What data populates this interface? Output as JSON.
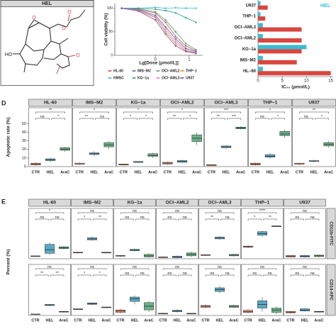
{
  "structure": {
    "title": "HEL",
    "labels": [
      "HO",
      "O",
      "O",
      "O",
      "O"
    ]
  },
  "chart_data": [
    {
      "type": "line",
      "xlabel": "Lg[Dose (μmol/L)]",
      "ylabel": "Cell viability (%)",
      "x": [
        -1,
        -0.5,
        0,
        0.3,
        0.6,
        0.9,
        1.2
      ],
      "xlim": [
        -1.2,
        1.4
      ],
      "xticks": [
        0,
        1
      ],
      "ylim": [
        0,
        110
      ],
      "yticks": [
        0,
        50,
        100
      ],
      "series": [
        {
          "name": "HL-60",
          "color": "#d9534f",
          "values": [
            100,
            98,
            90,
            70,
            40,
            20,
            10
          ]
        },
        {
          "name": "IMS−M2",
          "color": "#3b6fb6",
          "values": [
            100,
            97,
            85,
            60,
            35,
            15,
            8
          ]
        },
        {
          "name": "OCI−AML2",
          "color": "#5aa469",
          "values": [
            100,
            99,
            92,
            75,
            50,
            25,
            12
          ]
        },
        {
          "name": "THP−1",
          "color": "#e08a2c",
          "values": [
            100,
            95,
            80,
            50,
            25,
            10,
            5
          ]
        },
        {
          "name": "HMSC",
          "color": "#3bbcd6",
          "values": [
            100,
            100,
            102,
            100,
            101,
            100,
            100
          ]
        },
        {
          "name": "KG−1a",
          "color": "#2a9d8f",
          "values": [
            100,
            100,
            98,
            95,
            90,
            80,
            70
          ]
        },
        {
          "name": "OCI−AML3",
          "color": "#e377c2",
          "values": [
            100,
            96,
            82,
            55,
            30,
            12,
            6
          ]
        },
        {
          "name": "U937",
          "color": "#7b4ea3",
          "values": [
            100,
            94,
            75,
            45,
            20,
            8,
            4
          ]
        }
      ]
    },
    {
      "type": "hbar",
      "xlabel": "IC₅₀ (μmol/L)",
      "categories": [
        "U937",
        "THP−1",
        "OCI−AML3",
        "OCI−AML2",
        "KG−1a",
        "IMS−M2",
        "HL−60"
      ],
      "xlim": [
        0,
        15.5
      ],
      "xticks": [
        0,
        5,
        10,
        15
      ],
      "series": [
        {
          "name": "HEL",
          "color": "#3bbcd6",
          "values": [
            0.5,
            0.5,
            1,
            1,
            10,
            1,
            1
          ]
        },
        {
          "color": "#d9463e",
          "values": [
            2,
            1.5,
            9,
            9,
            9,
            8,
            15
          ]
        }
      ]
    },
    {
      "type": "box",
      "label": "D",
      "ylabel": "Apoptotic rate (%)",
      "categories": [
        "CTR",
        "HEL",
        "AraC"
      ],
      "colors": [
        "#e8876a",
        "#5aa9c6",
        "#6ab187"
      ],
      "ylim": [
        0,
        52
      ],
      "yticks": [
        0,
        10,
        20,
        30,
        40,
        50
      ],
      "titles": [
        "HL-60",
        "IMS−M2",
        "KG−1a",
        "OCI−AML2",
        "OCI−AML3",
        "THP−1",
        "U937"
      ],
      "rows": [
        {
          "boxes": [
            [
              [
                1,
                2,
                3,
                4,
                5
              ],
              [
                5,
                7,
                8,
                9,
                11
              ],
              [
                17,
                19,
                20,
                22,
                23
              ]
            ],
            [
              [
                2,
                3,
                3,
                4,
                5
              ],
              [
                12,
                14,
                15,
                16,
                18
              ],
              [
                20,
                23,
                25,
                28,
                30
              ]
            ],
            [
              [
                1,
                2,
                2,
                3,
                3
              ],
              [
                4,
                5,
                5,
                6,
                6
              ],
              [
                10,
                12,
                13,
                15,
                16
              ]
            ],
            [
              [
                2,
                3,
                4,
                5,
                6
              ],
              [
                4,
                5,
                6,
                7,
                8
              ],
              [
                25,
                29,
                33,
                37,
                40
              ]
            ],
            [
              [
                1,
                1,
                2,
                2,
                2
              ],
              [
                21,
                22,
                23,
                24,
                25
              ],
              [
                43,
                44,
                45,
                46,
                47
              ]
            ],
            [
              [
                1,
                2,
                3,
                4,
                5
              ],
              [
                9,
                11,
                12,
                14,
                16
              ],
              [
                33,
                36,
                38,
                41,
                43
              ]
            ],
            [
              [
                2,
                3,
                3,
                4,
                4
              ],
              [
                5,
                6,
                6,
                7,
                8
              ],
              [
                22,
                24,
                26,
                28,
                30
              ]
            ]
          ],
          "annotations": [
            [
              "**",
              "ns",
              "*"
            ],
            [
              "*",
              "**",
              "ns"
            ],
            [
              "*",
              "*",
              "*"
            ],
            [
              "*",
              "**",
              "*"
            ],
            [
              "***",
              "**",
              "***"
            ],
            [
              "*",
              "ns",
              "*"
            ],
            [
              "**",
              "ns",
              "*"
            ]
          ]
        }
      ]
    },
    {
      "type": "box",
      "label": "E",
      "ylabel": "Percent (%)",
      "categories": [
        "CTR",
        "HEL",
        "AraC"
      ],
      "colors": [
        "#e8876a",
        "#5aa9c6",
        "#6ab187"
      ],
      "ylim": [
        0,
        100
      ],
      "titles": [
        "HL-60",
        "IMS−M2",
        "KG−1a",
        "OCI−AML2",
        "OCI−AML3",
        "THP−1",
        "U937"
      ],
      "rows": [
        {
          "name": "CD11b-FITC",
          "boxes": [
            [
              [
                5,
                6,
                7,
                8,
                9
              ],
              [
                10,
                15,
                25,
                40,
                45
              ],
              [
                25,
                28,
                30,
                33,
                36
              ]
            ],
            [
              [
                15,
                16,
                17,
                18,
                19
              ],
              [
                50,
                52,
                55,
                58,
                62
              ],
              [
                15,
                16,
                17,
                18,
                19
              ]
            ],
            [
              [
                5,
                7,
                8,
                9,
                10
              ],
              [
                20,
                22,
                24,
                26,
                28
              ],
              [
                3,
                5,
                8,
                12,
                15
              ]
            ],
            [
              [
                2,
                3,
                4,
                5,
                6
              ],
              [
                2,
                3,
                5,
                7,
                9
              ],
              [
                5,
                8,
                12,
                16,
                20
              ]
            ],
            [
              [
                8,
                9,
                10,
                11,
                12
              ],
              [
                52,
                55,
                57,
                60,
                63
              ],
              [
                6,
                8,
                10,
                12,
                14
              ]
            ],
            [
              [
                30,
                32,
                33,
                35,
                37
              ],
              [
                60,
                65,
                70,
                75,
                78
              ],
              [
                88,
                89,
                90,
                91,
                92
              ]
            ],
            [
              [
                3,
                5,
                7,
                9,
                10
              ],
              [
                3,
                5,
                7,
                9,
                11
              ],
              [
                4,
                6,
                8,
                10,
                12
              ]
            ]
          ],
          "annotations": [
            [
              "*",
              "ns",
              "ns"
            ],
            [
              "ns",
              "*",
              "**"
            ],
            [
              "ns",
              "ns",
              "ns"
            ],
            [
              "ns",
              "ns",
              "ns"
            ],
            [
              "ns",
              "**",
              "ns"
            ],
            [
              "****",
              "*",
              "**"
            ],
            [
              "ns",
              "ns",
              "ns"
            ]
          ]
        },
        {
          "name": "CD14-APC",
          "boxes": [
            [
              [
                2,
                3,
                3,
                4,
                4
              ],
              [
                25,
                27,
                28,
                30,
                31
              ],
              [
                8,
                9,
                10,
                11,
                12
              ]
            ],
            [
              [
                15,
                16,
                17,
                18,
                19
              ],
              [
                28,
                30,
                32,
                34,
                36
              ],
              [
                20,
                21,
                22,
                23,
                24
              ]
            ],
            [
              [
                5,
                8,
                12,
                15,
                18
              ],
              [
                30,
                38,
                45,
                50,
                55
              ],
              [
                10,
                15,
                25,
                35,
                40
              ]
            ],
            [
              [
                3,
                4,
                5,
                6,
                7
              ],
              [
                8,
                10,
                12,
                14,
                16
              ],
              [
                3,
                4,
                5,
                6,
                7
              ]
            ],
            [
              [
                20,
                22,
                25,
                27,
                30
              ],
              [
                60,
                65,
                70,
                75,
                80
              ],
              [
                20,
                22,
                25,
                27,
                30
              ]
            ],
            [
              [
                5,
                8,
                10,
                14,
                17
              ],
              [
                10,
                20,
                30,
                40,
                50
              ],
              [
                3,
                8,
                15,
                20,
                25
              ]
            ],
            [
              [
                5,
                7,
                9,
                11,
                13
              ],
              [
                10,
                12,
                15,
                18,
                20
              ],
              [
                8,
                9,
                10,
                11,
                12
              ]
            ]
          ],
          "annotations": [
            [
              "ns",
              "**",
              "**"
            ],
            [
              "ns",
              "*",
              "*"
            ],
            [
              "ns",
              "ns",
              "ns"
            ],
            [
              "ns",
              "ns",
              "ns"
            ],
            [
              "ns",
              "ns",
              "ns"
            ],
            [
              "ns",
              "ns",
              "ns"
            ],
            [
              "ns",
              "ns",
              "ns"
            ]
          ]
        }
      ]
    }
  ]
}
